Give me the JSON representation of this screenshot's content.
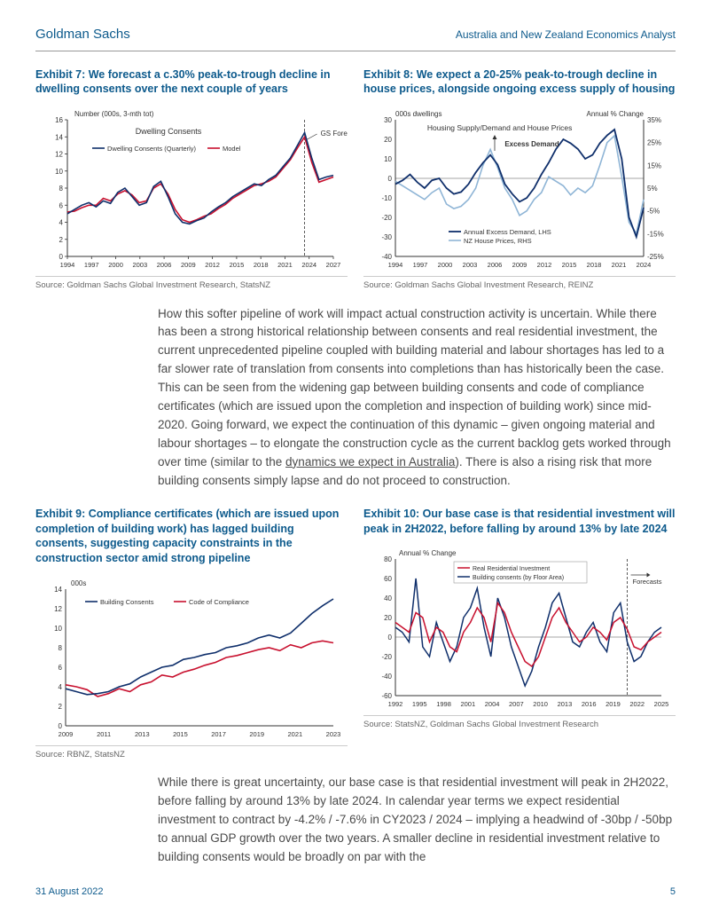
{
  "header": {
    "brand": "Goldman Sachs",
    "right": "Australia and New Zealand Economics Analyst"
  },
  "exhibit7": {
    "title": "Exhibit 7: We forecast a c.30% peak-to-trough decline in dwelling consents over the next couple of years",
    "yAxisLabel": "Number (000s, 3-mth tot)",
    "chartLabel": "Dwelling Consents",
    "legend1": "Dwelling Consents (Quarterly)",
    "legend2": "Model",
    "forecastLabel": "GS Forecast",
    "source": "Source: Goldman Sachs Global Investment Research, StatsNZ",
    "ylim": [
      0,
      16
    ],
    "ytick_step": 2,
    "xticks": [
      "1994",
      "1997",
      "2000",
      "2003",
      "2006",
      "2009",
      "2012",
      "2015",
      "2018",
      "2021",
      "2024",
      "2027"
    ],
    "series": {
      "consents": {
        "color": "#0f2f6b",
        "data": [
          5.0,
          5.5,
          6.0,
          6.3,
          5.8,
          6.5,
          6.2,
          7.5,
          8.0,
          7.0,
          6.0,
          6.3,
          8.2,
          8.8,
          7.0,
          5.0,
          4.0,
          3.8,
          4.2,
          4.5,
          5.2,
          5.8,
          6.3,
          7.0,
          7.5,
          8.0,
          8.5,
          8.3,
          9.0,
          9.5,
          10.5,
          11.5,
          13.0,
          14.5,
          11.5,
          9.0,
          9.3,
          9.5
        ]
      },
      "model": {
        "color": "#c8102e",
        "data": [
          5.2,
          5.3,
          5.7,
          6.0,
          6.0,
          6.8,
          6.5,
          7.3,
          7.7,
          7.2,
          6.3,
          6.5,
          8.0,
          8.5,
          7.3,
          5.5,
          4.3,
          4.0,
          4.3,
          4.7,
          5.0,
          5.6,
          6.1,
          6.8,
          7.3,
          7.8,
          8.3,
          8.5,
          8.8,
          9.3,
          10.3,
          11.3,
          12.7,
          14.0,
          11.0,
          8.7,
          9.0,
          9.3
        ]
      }
    },
    "forecastSplit": 33
  },
  "exhibit8": {
    "title": "Exhibit 8: We expect a 20-25% peak-to-trough decline in house prices, alongside ongoing excess supply of housing",
    "yLeftLabel": "000s dwellings",
    "yRightLabel": "Annual % Change",
    "topLabel": "Housing Supply/Demand and House Prices",
    "excessDemandLabel": "Excess Demand",
    "legend1": "Annual Excess Demand, LHS",
    "legend2": "NZ House Prices, RHS",
    "source": "Source: Goldman Sachs Global Investment Research, REINZ",
    "yLeft": {
      "lim": [
        -40,
        30
      ],
      "step": 10
    },
    "yRight": {
      "lim": [
        -25,
        35
      ],
      "vals": [
        -25,
        -15,
        -5,
        5,
        15,
        25,
        35
      ]
    },
    "xticks": [
      "1994",
      "1997",
      "2000",
      "2003",
      "2006",
      "2009",
      "2012",
      "2015",
      "2018",
      "2021",
      "2024"
    ],
    "series": {
      "excess": {
        "color": "#0f2f6b",
        "data": [
          -3,
          -1,
          2,
          -2,
          -5,
          -1,
          0,
          -5,
          -8,
          -7,
          -3,
          3,
          8,
          12,
          7,
          -3,
          -8,
          -12,
          -10,
          -5,
          2,
          8,
          15,
          20,
          18,
          15,
          10,
          12,
          18,
          22,
          25,
          10,
          -20,
          -30,
          -15
        ]
      },
      "prices": {
        "color": "#8fb5d6",
        "data": [
          8,
          6,
          4,
          2,
          0,
          3,
          5,
          -2,
          -4,
          -3,
          0,
          5,
          15,
          22,
          14,
          5,
          0,
          -7,
          -5,
          0,
          3,
          10,
          8,
          6,
          2,
          5,
          3,
          6,
          15,
          25,
          28,
          10,
          -10,
          -15,
          0
        ]
      }
    }
  },
  "body1": {
    "text": "How this softer pipeline of work will impact actual construction activity is uncertain. While there has been a strong historical relationship between consents and real residential investment, the current unprecedented pipeline coupled with building material and labour shortages has led to a far slower rate of translation from consents into completions than has historically been the case. This can be seen from the widening gap between building consents and code of compliance certificates (which are issued upon the completion and inspection of building work) since mid-2020. Going forward, we expect the continuation of this dynamic – given ongoing material and labour shortages – to elongate the construction cycle as the current backlog gets worked through over time (similar to the ",
    "link": "dynamics we expect in Australia",
    "textEnd": "). There is also a rising risk that more building consents simply lapse and do not proceed to construction."
  },
  "exhibit9": {
    "title": "Exhibit 9: Compliance certificates (which are issued upon completion of building work) has lagged building consents, suggesting capacity constraints in the construction sector amid strong pipeline",
    "yAxisLabel": "000s",
    "legend1": "Building Consents",
    "legend2": "Code of Compliance",
    "source": "Source: RBNZ, StatsNZ",
    "ylim": [
      0,
      14
    ],
    "ytick_step": 2,
    "xticks": [
      "2009",
      "2011",
      "2013",
      "2015",
      "2017",
      "2019",
      "2021",
      "2023"
    ],
    "series": {
      "consents": {
        "color": "#0f2f6b",
        "data": [
          3.8,
          3.5,
          3.2,
          3.3,
          3.5,
          4.0,
          4.3,
          5.0,
          5.5,
          6.0,
          6.2,
          6.8,
          7.0,
          7.3,
          7.5,
          8.0,
          8.2,
          8.5,
          9.0,
          9.3,
          9.0,
          9.5,
          10.5,
          11.5,
          12.3,
          13.0
        ]
      },
      "compliance": {
        "color": "#c8102e",
        "data": [
          4.2,
          4.0,
          3.7,
          3.0,
          3.3,
          3.8,
          3.5,
          4.2,
          4.5,
          5.2,
          5.0,
          5.5,
          5.8,
          6.2,
          6.5,
          7.0,
          7.2,
          7.5,
          7.8,
          8.0,
          7.7,
          8.3,
          8.0,
          8.5,
          8.7,
          8.5
        ]
      }
    }
  },
  "exhibit10": {
    "title": "Exhibit 10: Our base case is that residential investment will peak in 2H2022, before falling by around 13% by late 2024",
    "yAxisLabel": "Annual % Change",
    "legend1": "Real Residential Investment",
    "legend2": "Building consents (by Floor Area)",
    "forecastLabel": "Forecasts",
    "source": "Source: StatsNZ, Goldman Sachs Global Investment Research",
    "ylim": [
      -60,
      80
    ],
    "ytick_step": 20,
    "xticks": [
      "1992",
      "1995",
      "1998",
      "2001",
      "2004",
      "2007",
      "2010",
      "2013",
      "2016",
      "2019",
      "2022",
      "2025"
    ],
    "series": {
      "invest": {
        "color": "#c8102e",
        "data": [
          15,
          10,
          5,
          25,
          20,
          -5,
          10,
          5,
          -10,
          -15,
          5,
          15,
          30,
          20,
          -5,
          35,
          25,
          5,
          -10,
          -25,
          -30,
          -20,
          0,
          20,
          30,
          15,
          5,
          -5,
          0,
          10,
          5,
          -3,
          15,
          20,
          8,
          -10,
          -13,
          -5,
          0,
          5
        ]
      },
      "consents": {
        "color": "#0f2f6b",
        "data": [
          10,
          5,
          -5,
          60,
          -10,
          -20,
          15,
          -5,
          -25,
          -10,
          20,
          30,
          50,
          10,
          -20,
          40,
          20,
          -10,
          -30,
          -50,
          -35,
          -10,
          10,
          35,
          45,
          20,
          -5,
          -10,
          5,
          15,
          -5,
          -15,
          25,
          35,
          -5,
          -25,
          -20,
          -5,
          5,
          10
        ]
      }
    },
    "forecastX": 34
  },
  "body2": {
    "text": "While there is great uncertainty, our base case is that residential investment will peak in 2H2022, before falling by around 13% by late 2024. In calendar year terms we expect residential investment to contract by -4.2% / -7.6% in CY2023 / 2024 – implying a headwind of -30bp / -50bp to annual GDP growth over the two years. A smaller decline in residential investment relative to building consents would be broadly on par with the"
  },
  "footer": {
    "date": "31 August 2022",
    "page": "5"
  },
  "colors": {
    "brand": "#0d5a8c",
    "navy": "#0f2f6b",
    "red": "#c8102e",
    "lightblue": "#8fb5d6",
    "grid": "#888",
    "axis": "#333"
  }
}
